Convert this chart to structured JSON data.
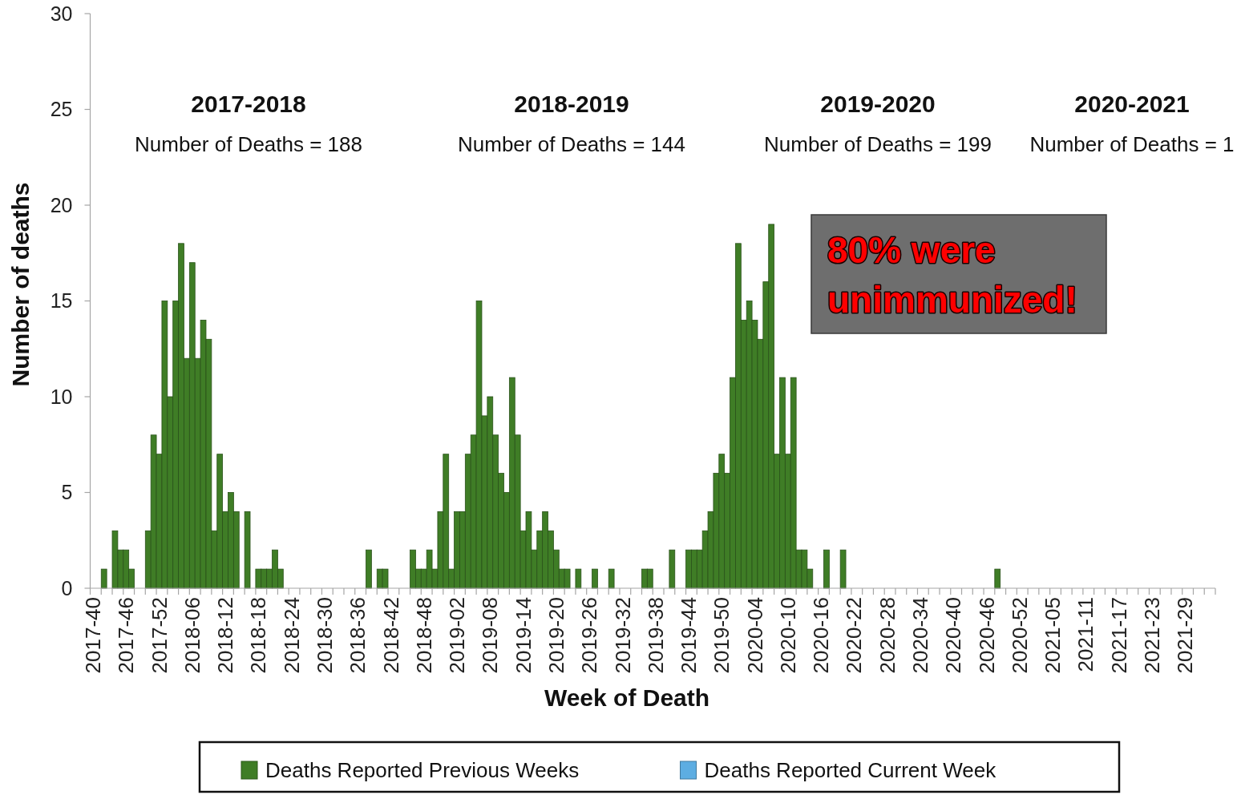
{
  "chart_data": {
    "type": "bar",
    "xlabel": "Week of Death",
    "ylabel": "Number of deaths",
    "categories": [
      "2017-40",
      null,
      null,
      null,
      null,
      null,
      "2017-46",
      null,
      null,
      null,
      null,
      null,
      "2017-52",
      null,
      null,
      null,
      null,
      null,
      "2018-06",
      null,
      null,
      null,
      null,
      null,
      "2018-12",
      null,
      null,
      null,
      null,
      null,
      "2018-18",
      null,
      null,
      null,
      null,
      null,
      "2018-24",
      null,
      null,
      null,
      null,
      null,
      "2018-30",
      null,
      null,
      null,
      null,
      null,
      "2018-36",
      null,
      null,
      null,
      null,
      null,
      "2018-42",
      null,
      null,
      null,
      null,
      null,
      "2018-48",
      null,
      null,
      null,
      null,
      null,
      "2019-02",
      null,
      null,
      null,
      null,
      null,
      "2019-08",
      null,
      null,
      null,
      null,
      null,
      "2019-14",
      null,
      null,
      null,
      null,
      null,
      "2019-20",
      null,
      null,
      null,
      null,
      null,
      "2019-26",
      null,
      null,
      null,
      null,
      null,
      "2019-32",
      null,
      null,
      null,
      null,
      null,
      "2019-38",
      null,
      null,
      null,
      null,
      null,
      "2019-44",
      null,
      null,
      null,
      null,
      null,
      "2019-50",
      null,
      null,
      null,
      null,
      null,
      "2020-04",
      null,
      null,
      null,
      null,
      null,
      "2020-10",
      null,
      null,
      null,
      null,
      null,
      "2020-16",
      null,
      null,
      null,
      null,
      null,
      "2020-22",
      null,
      null,
      null,
      null,
      null,
      "2020-28",
      null,
      null,
      null,
      null,
      null,
      "2020-34",
      null,
      null,
      null,
      null,
      null,
      "2020-40",
      null,
      null,
      null,
      null,
      null,
      "2020-46",
      null,
      null,
      null,
      null,
      null,
      "2020-52",
      null,
      null,
      null,
      null,
      null,
      "2021-05",
      null,
      null,
      null,
      null,
      null,
      "2021-11",
      null,
      null,
      null,
      null,
      null,
      "2021-17",
      null,
      null,
      null,
      null,
      null,
      "2021-23",
      null,
      null,
      null,
      null,
      null,
      "2021-29",
      null,
      null,
      null,
      null,
      null
    ],
    "series": [
      {
        "name": "Deaths Reported Previous Weeks",
        "color": "#3f7d26",
        "values": [
          0,
          0,
          1,
          0,
          3,
          2,
          2,
          1,
          0,
          0,
          3,
          8,
          7,
          15,
          10,
          15,
          18,
          12,
          17,
          12,
          14,
          13,
          3,
          7,
          4,
          5,
          4,
          0,
          4,
          0,
          1,
          1,
          1,
          2,
          1,
          0,
          0,
          0,
          0,
          0,
          0,
          0,
          0,
          0,
          0,
          0,
          0,
          0,
          0,
          0,
          2,
          0,
          1,
          1,
          0,
          0,
          0,
          0,
          2,
          1,
          1,
          2,
          1,
          4,
          7,
          1,
          4,
          4,
          7,
          8,
          15,
          9,
          10,
          8,
          6,
          5,
          11,
          8,
          3,
          4,
          2,
          3,
          4,
          3,
          2,
          1,
          1,
          0,
          1,
          0,
          0,
          1,
          0,
          0,
          1,
          0,
          0,
          0,
          0,
          0,
          1,
          1,
          0,
          0,
          0,
          2,
          0,
          0,
          2,
          2,
          2,
          3,
          4,
          6,
          7,
          6,
          11,
          18,
          14,
          15,
          14,
          13,
          16,
          19,
          7,
          11,
          7,
          11,
          2,
          2,
          1,
          0,
          0,
          2,
          0,
          0,
          2,
          0,
          0,
          0,
          0,
          0,
          0,
          0,
          0,
          0,
          0,
          0,
          0,
          0,
          0,
          0,
          0,
          0,
          0,
          0,
          0,
          0,
          0,
          0,
          0,
          0,
          0,
          0,
          1,
          0,
          0,
          0,
          0,
          0,
          0,
          0,
          0,
          0,
          0,
          0,
          0,
          0,
          0,
          0,
          0,
          0,
          0,
          0,
          0,
          0,
          0,
          0,
          0,
          0,
          0,
          0,
          0,
          0,
          0,
          0,
          0,
          0,
          0,
          0,
          0,
          0,
          0,
          0
        ]
      },
      {
        "name": "Deaths Reported Current Week",
        "color": "#5dade2",
        "values": [
          0,
          0,
          0,
          0,
          0,
          0,
          0,
          0,
          0,
          0,
          0,
          0,
          0,
          0,
          0,
          0,
          0,
          0,
          0,
          0,
          0,
          0,
          0,
          0,
          0,
          0,
          0,
          0,
          0,
          0,
          0,
          0,
          0,
          0,
          0,
          0,
          0,
          0,
          0,
          0,
          0,
          0,
          0,
          0,
          0,
          0,
          0,
          0,
          0,
          0,
          0,
          0,
          0,
          0,
          0,
          0,
          0,
          0,
          0,
          0,
          0,
          0,
          0,
          0,
          0,
          0,
          0,
          0,
          0,
          0,
          0,
          0,
          0,
          0,
          0,
          0,
          0,
          0,
          0,
          0,
          0,
          0,
          0,
          0,
          0,
          0,
          0,
          0,
          0,
          0,
          0,
          0,
          0,
          0,
          0,
          0,
          0,
          0,
          0,
          0,
          0,
          0,
          0,
          0,
          0,
          0,
          0,
          0,
          0,
          0,
          0,
          0,
          0,
          0,
          0,
          0,
          0,
          0,
          0,
          0,
          0,
          0,
          0,
          0,
          0,
          0,
          0,
          0,
          0,
          0,
          0,
          0,
          0,
          0,
          0,
          0,
          0,
          0,
          0,
          0,
          0,
          0,
          0,
          0,
          0,
          0,
          0,
          0,
          0,
          0,
          0,
          0,
          0,
          0,
          0,
          0,
          0,
          0,
          0,
          0,
          0,
          0,
          0,
          0,
          0,
          0,
          0,
          0,
          0,
          0,
          0,
          0,
          0,
          0,
          0,
          0,
          0,
          0,
          0,
          0,
          0,
          0,
          0,
          0,
          0,
          0,
          0,
          0,
          0,
          0,
          0,
          0,
          0,
          0,
          0,
          0,
          0,
          0,
          0,
          0,
          0,
          0,
          0,
          0
        ]
      }
    ],
    "ylim": [
      0,
      30
    ],
    "yticks": [
      0,
      5,
      10,
      15,
      20,
      25,
      30
    ],
    "legend": "bottom",
    "annotations": [
      "2017-2018",
      "Number of Deaths = 188",
      "2018-2019",
      "Number of Deaths = 144",
      "2019-2020",
      "Number of Deaths = 199",
      "2020-2021",
      "Number of Deaths = 1",
      "80% were unimmunized!"
    ]
  }
}
